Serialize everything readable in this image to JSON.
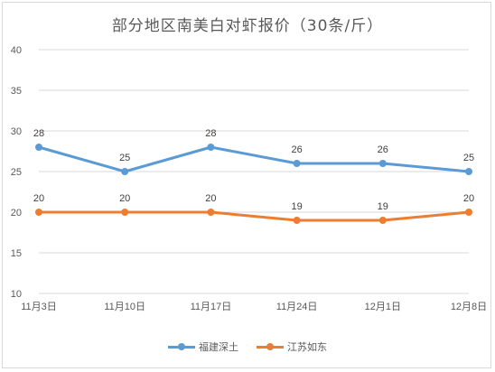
{
  "chart_data": {
    "type": "line",
    "title": "部分地区南美白对虾报价（30条/斤）",
    "categories": [
      "11月3日",
      "11月10日",
      "11月17日",
      "11月24日",
      "12月1日",
      "12月8日"
    ],
    "series": [
      {
        "name": "福建深土",
        "color": "#5b9bd5",
        "values": [
          28,
          25,
          28,
          26,
          26,
          25
        ]
      },
      {
        "name": "江苏如东",
        "color": "#ed7d31",
        "values": [
          20,
          20,
          20,
          19,
          19,
          20
        ]
      }
    ],
    "ylim": [
      10,
      40
    ],
    "yticks": [
      10,
      15,
      20,
      25,
      30,
      35,
      40
    ],
    "grid": true,
    "legend": "bottom"
  }
}
